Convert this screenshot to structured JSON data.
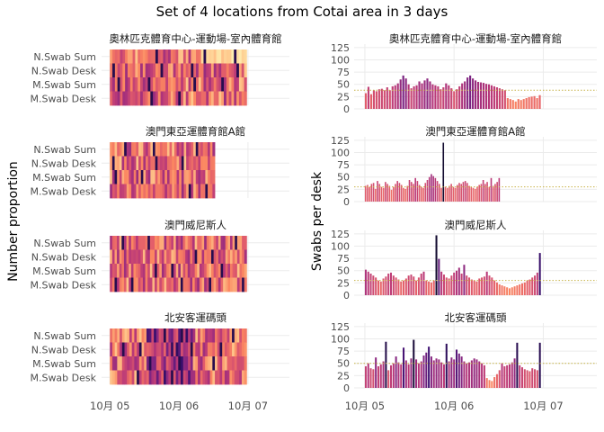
{
  "title": "Set of 4 locations from Cotai area in 3 days",
  "colors": {
    "palette": [
      "#fcfdbf",
      "#fec98d",
      "#fb8761",
      "#e35e6a",
      "#b73779",
      "#7d2482",
      "#3b0f70",
      "#0d0a25"
    ],
    "grid": "#ebebeb",
    "reference_line": "#c8b34a"
  },
  "chart_data": [
    {
      "type": "heatmap",
      "panel": "left",
      "ylabel": "Number proportion",
      "x_ticks": [
        "10月 05",
        "10月 06",
        "10月 07"
      ],
      "x_tick_days": [
        0,
        1,
        2
      ],
      "x_domain_days": [
        -0.12,
        2.6
      ],
      "rows": [
        "N.Swab Sum",
        "N.Swab Desk",
        "M.Swab Sum",
        "M.Swab Desk"
      ],
      "facets": [
        {
          "title": "奧林匹克體育中心-運動場-室內體育館",
          "start_day": 0.0,
          "end_day": 1.98,
          "steps": 54
        },
        {
          "title": "澳門東亞運體育館A館",
          "start_day": 0.0,
          "end_day": 1.52,
          "steps": 44
        },
        {
          "title": "澳門威尼斯人",
          "start_day": 0.0,
          "end_day": 1.98,
          "steps": 58
        },
        {
          "title": "北安客運碼頭",
          "start_day": 0.0,
          "end_day": 1.98,
          "steps": 56
        }
      ]
    },
    {
      "type": "bar",
      "panel": "right",
      "ylabel": "Swabs per desk",
      "x_ticks": [
        "10月 05",
        "10月 06",
        "10月 07"
      ],
      "x_tick_days": [
        0,
        1,
        2
      ],
      "x_domain_days": [
        -0.12,
        2.6
      ],
      "yticks": [
        0,
        25,
        50,
        75,
        100,
        125
      ],
      "ylim": [
        0,
        132
      ],
      "facets": [
        {
          "title": "奧林匹克體育中心-運動場-室內體育館",
          "reference": 38,
          "start_day": 0.0,
          "end_day": 1.98,
          "values": [
            32,
            45,
            30,
            38,
            36,
            40,
            41,
            38,
            44,
            38,
            46,
            48,
            52,
            60,
            68,
            62,
            50,
            42,
            46,
            48,
            56,
            52,
            58,
            62,
            56,
            50,
            48,
            46,
            40,
            44,
            52,
            48,
            42,
            36,
            40,
            46,
            52,
            56,
            64,
            68,
            62,
            58,
            55,
            54,
            53,
            51,
            50,
            48,
            46,
            44,
            42,
            40,
            38,
            22,
            20,
            18,
            15,
            20,
            18,
            20,
            22,
            24,
            25,
            26,
            22,
            28
          ]
        },
        {
          "title": "澳門東亞運體育館A館",
          "reference": 30,
          "start_day": 0.0,
          "end_day": 1.52,
          "values": [
            32,
            34,
            30,
            36,
            38,
            26,
            42,
            36,
            30,
            28,
            40,
            36,
            32,
            24,
            30,
            36,
            42,
            38,
            34,
            28,
            26,
            32,
            44,
            40,
            36,
            48,
            42,
            34,
            30,
            28,
            38,
            44,
            50,
            56,
            52,
            48,
            42,
            36,
            28,
            120,
            30,
            28,
            32,
            36,
            30,
            28,
            34,
            38,
            36,
            40,
            42,
            38,
            32,
            30,
            28,
            26,
            30,
            34,
            36,
            44,
            36,
            40,
            30,
            48,
            32,
            36,
            40,
            48
          ]
        },
        {
          "title": "澳門威尼斯人",
          "reference": 30,
          "start_day": 0.0,
          "end_day": 1.98,
          "values": [
            52,
            48,
            44,
            40,
            36,
            30,
            28,
            34,
            38,
            44,
            46,
            40,
            36,
            32,
            28,
            30,
            34,
            40,
            42,
            38,
            30,
            36,
            44,
            48,
            30,
            28,
            26,
            30,
            122,
            74,
            48,
            42,
            36,
            34,
            40,
            46,
            50,
            56,
            44,
            62,
            40,
            36,
            32,
            30,
            28,
            34,
            36,
            38,
            48,
            40,
            36,
            30,
            26,
            22,
            20,
            18,
            16,
            14,
            16,
            18,
            20,
            22,
            24,
            26,
            30,
            32,
            36,
            40,
            46,
            86
          ]
        },
        {
          "title": "北安客運碼頭",
          "reference": 50,
          "start_day": 0.0,
          "end_day": 1.98,
          "values": [
            44,
            50,
            40,
            38,
            62,
            44,
            48,
            54,
            94,
            36,
            46,
            50,
            64,
            52,
            48,
            82,
            56,
            48,
            60,
            98,
            58,
            50,
            54,
            66,
            72,
            84,
            64,
            56,
            60,
            58,
            52,
            48,
            90,
            54,
            62,
            58,
            78,
            70,
            64,
            54,
            50,
            52,
            56,
            60,
            58,
            54,
            50,
            46,
            20,
            16,
            14,
            22,
            28,
            36,
            50,
            44,
            46,
            48,
            52,
            60,
            92,
            46,
            42,
            38,
            36,
            34,
            40,
            38,
            36,
            92
          ]
        }
      ]
    }
  ]
}
